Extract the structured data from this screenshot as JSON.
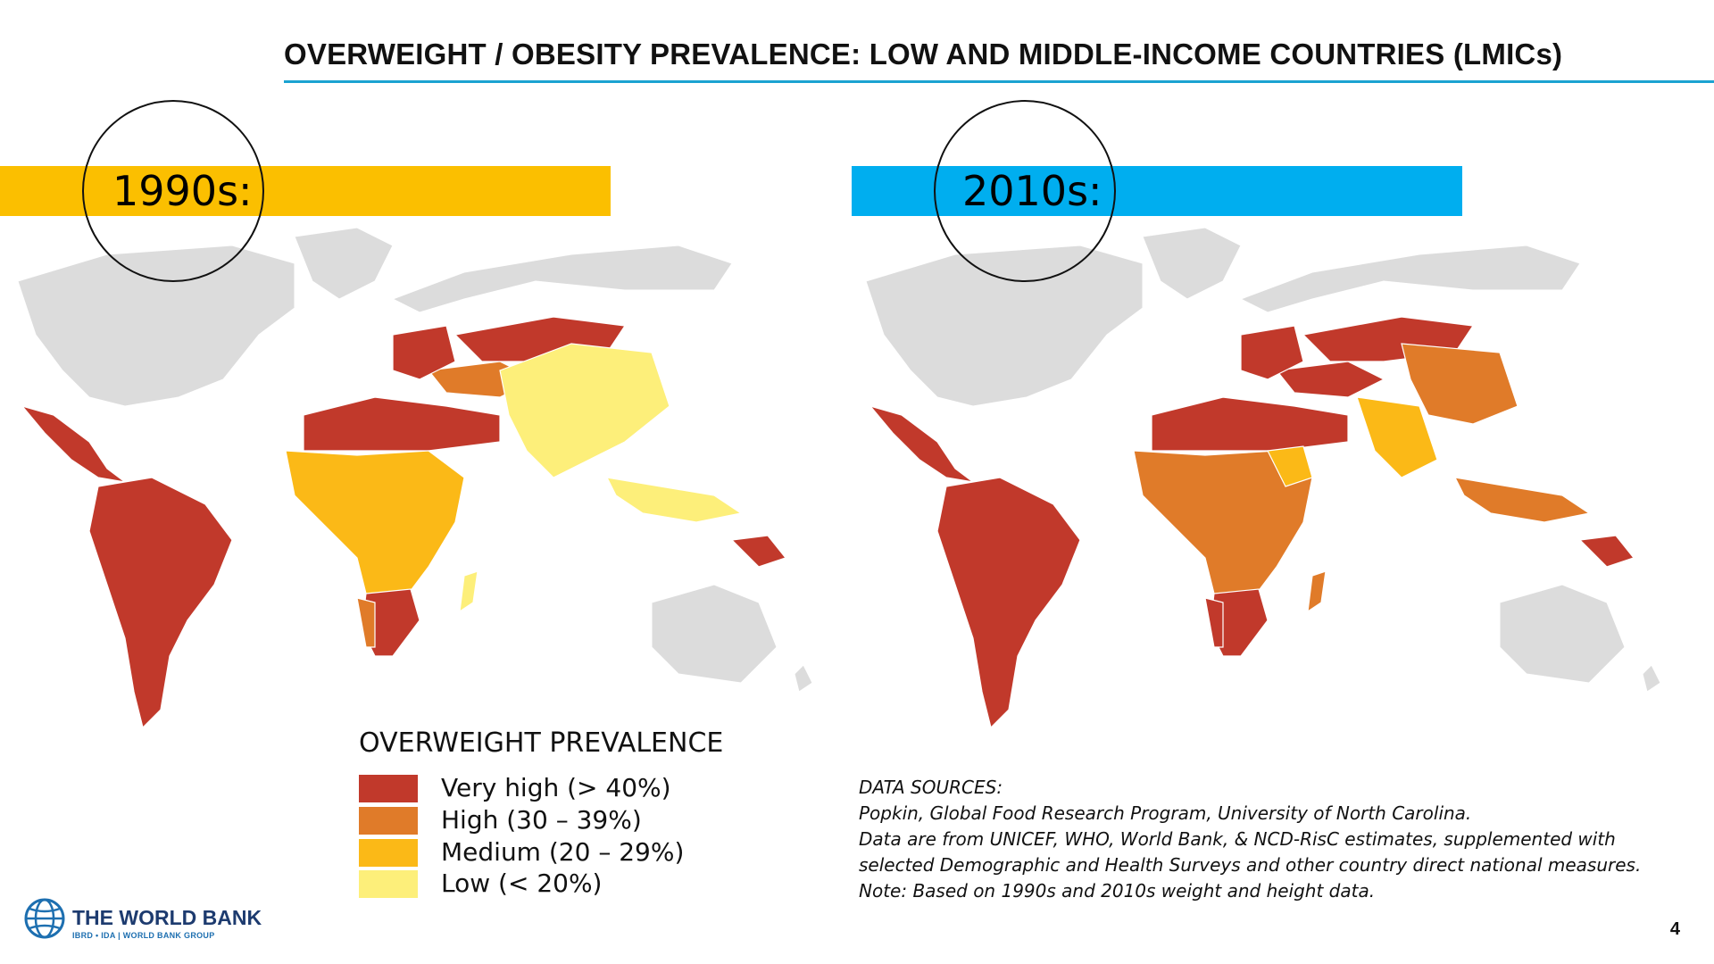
{
  "title": "OVERWEIGHT / OBESITY PREVALENCE: LOW AND MIDDLE-INCOME COUNTRIES (LMICs)",
  "colors": {
    "very_high": "#c1392b",
    "high": "#e07b29",
    "medium": "#fbb917",
    "low": "#fdef7a",
    "no_data": "#dcdcdc",
    "accent_rule": "#1ba3d1",
    "bar_1990s": "#fbbf00",
    "bar_2010s": "#00aeef"
  },
  "maps": [
    {
      "period_label": "1990s:"
    },
    {
      "period_label": "2010s:"
    }
  ],
  "legend": {
    "title": "OVERWEIGHT PREVALENCE",
    "items": [
      {
        "label": "Very high (> 40%)",
        "color": "#c1392b"
      },
      {
        "label": "High (30 – 39%)",
        "color": "#e07b29"
      },
      {
        "label": "Medium (20 – 29%)",
        "color": "#fbb917"
      },
      {
        "label": "Low (< 20%)",
        "color": "#fdef7a"
      }
    ]
  },
  "sources": [
    "DATA SOURCES:",
    "Popkin, Global Food Research Program, University of North Carolina.",
    "Data are from UNICEF, WHO, World Bank, & NCD-RisC estimates, supplemented with",
    "selected Demographic and Health Surveys and other country direct national measures.",
    "Note: Based on 1990s and 2010s weight and height data."
  ],
  "logo": {
    "name": "THE WORLD BANK",
    "sub": "IBRD • IDA | WORLD BANK GROUP"
  },
  "page_number": "4"
}
